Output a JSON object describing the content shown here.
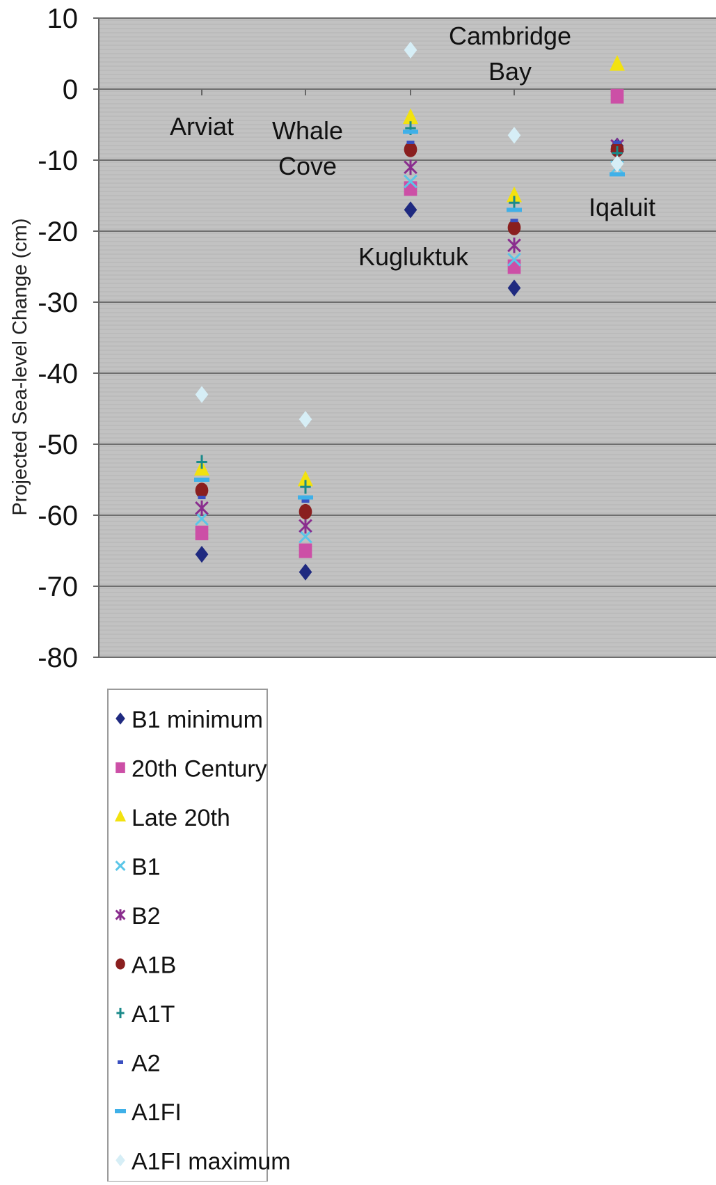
{
  "chart_data": {
    "type": "scatter",
    "title": "",
    "xlabel": "",
    "ylabel": "Projected Sea-level Change (cm)",
    "ylim": [
      -80,
      10
    ],
    "yticks": [
      10,
      0,
      -10,
      -20,
      -30,
      -40,
      -50,
      -60,
      -70,
      -80
    ],
    "grid": true,
    "legend_position": "bottom-left",
    "categories": [
      "Arviat",
      "Whale Cove",
      "Kugluktuk",
      "Cambridge Bay",
      "Iqaluit"
    ],
    "category_labels": [
      {
        "lines": [
          "Arviat"
        ]
      },
      {
        "lines": [
          "Whale",
          "Cove"
        ]
      },
      {
        "lines": [
          "Kugluktuk"
        ]
      },
      {
        "lines": [
          "Cambridge",
          "Bay"
        ]
      },
      {
        "lines": [
          "Iqaluit"
        ]
      }
    ],
    "series": [
      {
        "name": "B1 minimum",
        "marker": "diamond",
        "color": "#1f2a80",
        "values": [
          -65.5,
          -68,
          -17,
          -28,
          -8
        ]
      },
      {
        "name": "20th Century",
        "marker": "square",
        "color": "#cc4fa6",
        "values": [
          -62.5,
          -65,
          -14,
          -25,
          -1
        ]
      },
      {
        "name": "Late 20th",
        "marker": "triangle",
        "color": "#f2e20f",
        "values": [
          -53.5,
          -55,
          -4,
          -15,
          3.5
        ]
      },
      {
        "name": "B1",
        "marker": "x",
        "color": "#5bc6e8",
        "values": [
          -60.5,
          -63,
          -13,
          -24,
          -11
        ]
      },
      {
        "name": "B2",
        "marker": "star",
        "color": "#8a2d8e",
        "values": [
          -59,
          -61.5,
          -11,
          -22,
          -8
        ]
      },
      {
        "name": "A1B",
        "marker": "circle",
        "color": "#8a1f1f",
        "values": [
          -56.5,
          -59.5,
          -8.5,
          -19.5,
          -8.5
        ]
      },
      {
        "name": "A1T",
        "marker": "plus",
        "color": "#1a8a8a",
        "values": [
          -52.5,
          -56,
          -5.5,
          -16,
          -9
        ]
      },
      {
        "name": "A2",
        "marker": "dash",
        "color": "#3a4fc0",
        "values": [
          -57.5,
          -58,
          -7.5,
          -18.5,
          -7.5
        ]
      },
      {
        "name": "A1FI",
        "marker": "bar",
        "color": "#3fb0e8",
        "values": [
          -55,
          -57.5,
          -6,
          -17,
          -12
        ]
      },
      {
        "name": "A1FI maximum",
        "marker": "diamond",
        "color": "#d6eef6",
        "values": [
          -43,
          -46.5,
          5.5,
          -6.5,
          -10.5
        ]
      }
    ]
  }
}
